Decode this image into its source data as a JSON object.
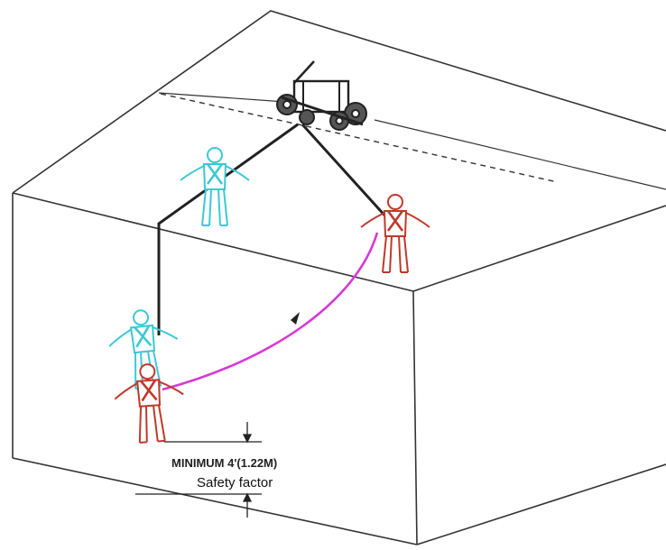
{
  "annotation": {
    "minimum_label": "MINIMUM 4'(1.22M)",
    "safety_label": "Safety factor"
  },
  "colors": {
    "edge": "#333333",
    "worker_safe": "#3cc8d6",
    "worker_fall": "#c0392b",
    "swing_path": "#d63ad6",
    "lifeline": "#222222"
  },
  "icons": {
    "anchor": "roof-trolley-anchor-icon",
    "worker": "fall-arrest-harness-worker-icon"
  }
}
